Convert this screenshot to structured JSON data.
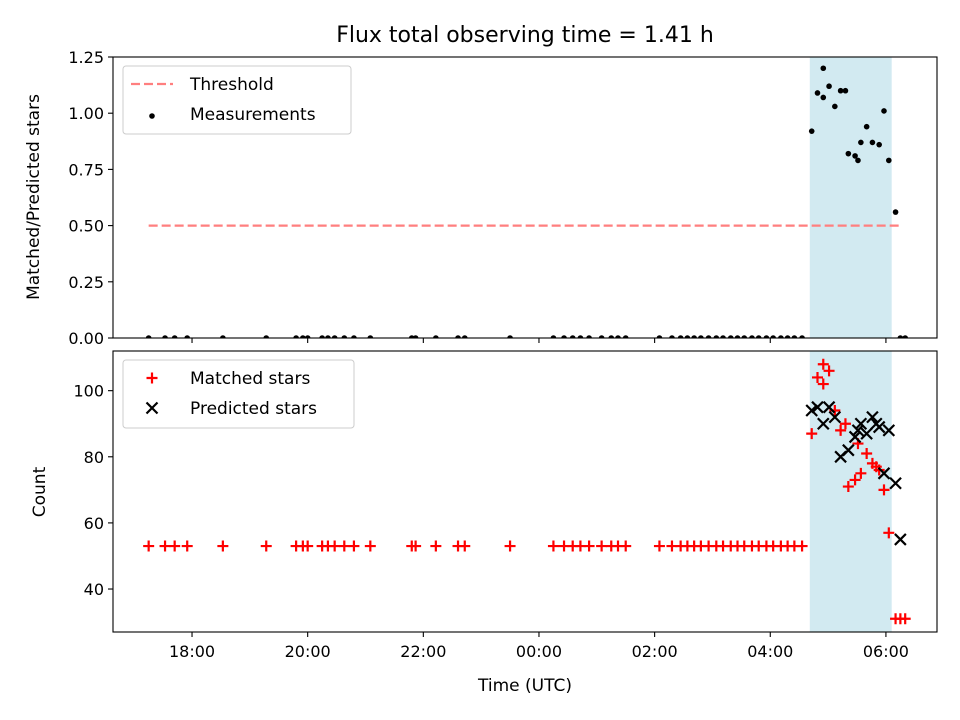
{
  "chart_data": [
    {
      "type": "scatter",
      "title": "Flux total observing time = 1.41 h",
      "xlabel": "",
      "ylabel": "Matched/Predicted stars",
      "xlim": [
        "16:38",
        "06:53"
      ],
      "ylim": [
        0,
        1.25
      ],
      "yticks": [
        "0.00",
        "0.25",
        "0.50",
        "0.75",
        "1.00",
        "1.25"
      ],
      "xticks": [
        "18:00",
        "20:00",
        "22:00",
        "00:00",
        "02:00",
        "04:00",
        "06:00"
      ],
      "highlight_span": [
        "04:41",
        "06:06"
      ],
      "highlight_color": "#add8e6",
      "legend_position": "upper-left",
      "series": [
        {
          "name": "Threshold",
          "kind": "line",
          "style": "dashed",
          "color": "#ff7f7f",
          "x": [
            "17:15",
            "06:15"
          ],
          "y": [
            0.5,
            0.5
          ]
        },
        {
          "name": "Measurements",
          "kind": "points",
          "marker": "dot",
          "color": "#000000",
          "x": [
            "17:15",
            "17:32",
            "17:42",
            "17:55",
            "18:32",
            "19:17",
            "19:48",
            "19:55",
            "20:00",
            "20:15",
            "20:21",
            "20:28",
            "20:38",
            "20:48",
            "21:05",
            "21:48",
            "21:52",
            "22:13",
            "22:36",
            "22:43",
            "23:30",
            "00:15",
            "00:26",
            "00:35",
            "00:43",
            "00:52",
            "01:05",
            "01:15",
            "01:22",
            "01:30",
            "02:05",
            "02:18",
            "02:27",
            "02:34",
            "02:41",
            "02:48",
            "02:56",
            "03:04",
            "03:11",
            "03:19",
            "03:26",
            "03:33",
            "03:41",
            "03:48",
            "03:56",
            "04:03",
            "04:11",
            "04:18",
            "04:25",
            "04:33",
            "04:43",
            "04:49",
            "04:55",
            "05:01",
            "05:07",
            "05:13",
            "05:21",
            "05:28",
            "05:34",
            "05:40",
            "05:46",
            "05:53",
            "05:58",
            "06:03",
            "06:10",
            "06:15",
            "06:20"
          ],
          "y": [
            0,
            0,
            0,
            0,
            0,
            0,
            0,
            0,
            0,
            0,
            0,
            0,
            0,
            0,
            0,
            0,
            0,
            0,
            0,
            0,
            0,
            0,
            0,
            0,
            0,
            0,
            0,
            0,
            0,
            0,
            0,
            0,
            0,
            0,
            0,
            0,
            0,
            0,
            0,
            0,
            0,
            0,
            0,
            0,
            0,
            0,
            0,
            0,
            0,
            0,
            0.92,
            1.09,
            1.07,
            1.12,
            1.03,
            1.1,
            0.82,
            0.81,
            0.87,
            0.94,
            0.87,
            0.86,
            1.01,
            0.79,
            0.56,
            0,
            0
          ]
        },
        {
          "name": "",
          "kind": "points",
          "marker": "dot",
          "color": "#000000",
          "x": [
            "04:55",
            "05:18",
            "05:31"
          ],
          "y": [
            1.2,
            1.1,
            0.79
          ]
        }
      ]
    },
    {
      "type": "scatter",
      "title": "",
      "xlabel": "Time (UTC)",
      "ylabel": "Count",
      "xlim": [
        "16:38",
        "06:53"
      ],
      "ylim": [
        27,
        112
      ],
      "yticks": [
        "40",
        "60",
        "80",
        "100"
      ],
      "xticks": [
        "18:00",
        "20:00",
        "22:00",
        "00:00",
        "02:00",
        "04:00",
        "06:00"
      ],
      "highlight_span": [
        "04:41",
        "06:06"
      ],
      "highlight_color": "#add8e6",
      "legend_position": "upper-left",
      "series": [
        {
          "name": "Matched stars",
          "kind": "points",
          "marker": "plus",
          "color": "#ff0000",
          "x": [
            "17:15",
            "17:32",
            "17:42",
            "17:55",
            "18:32",
            "19:17",
            "19:48",
            "19:55",
            "20:00",
            "20:15",
            "20:21",
            "20:28",
            "20:38",
            "20:48",
            "21:05",
            "21:48",
            "21:52",
            "22:13",
            "22:36",
            "22:43",
            "23:30",
            "00:15",
            "00:26",
            "00:35",
            "00:43",
            "00:52",
            "01:05",
            "01:15",
            "01:22",
            "01:30",
            "02:05",
            "02:18",
            "02:27",
            "02:34",
            "02:41",
            "02:48",
            "02:56",
            "03:04",
            "03:11",
            "03:19",
            "03:26",
            "03:33",
            "03:41",
            "03:48",
            "03:56",
            "04:03",
            "04:11",
            "04:18",
            "04:25",
            "04:33",
            "04:43",
            "04:49",
            "04:55",
            "05:01",
            "05:07",
            "05:13",
            "05:21",
            "05:28",
            "05:34",
            "05:40",
            "05:46",
            "05:53",
            "05:58",
            "06:03",
            "06:10",
            "06:15",
            "06:20"
          ],
          "y": [
            53,
            53,
            53,
            53,
            53,
            53,
            53,
            53,
            53,
            53,
            53,
            53,
            53,
            53,
            53,
            53,
            53,
            53,
            53,
            53,
            53,
            53,
            53,
            53,
            53,
            53,
            53,
            53,
            53,
            53,
            53,
            53,
            53,
            53,
            53,
            53,
            53,
            53,
            53,
            53,
            53,
            53,
            53,
            53,
            53,
            53,
            53,
            53,
            53,
            53,
            87,
            104,
            102,
            106,
            94,
            88,
            71,
            73,
            75,
            81,
            78,
            76,
            70,
            57,
            31,
            31,
            31
          ]
        },
        {
          "name": "",
          "kind": "points",
          "marker": "plus",
          "color": "#ff0000",
          "x": [
            "04:55",
            "05:18",
            "05:31",
            "05:50"
          ],
          "y": [
            108,
            90,
            84,
            77
          ]
        },
        {
          "name": "Predicted stars",
          "kind": "points",
          "marker": "x",
          "color": "#000000",
          "x": [
            "04:43",
            "04:49",
            "04:55",
            "05:01",
            "05:07",
            "05:13",
            "05:21",
            "05:28",
            "05:34",
            "05:40",
            "05:46",
            "05:53",
            "05:58",
            "06:03",
            "06:10"
          ],
          "y": [
            94,
            95,
            90,
            95,
            92,
            80,
            82,
            86,
            90,
            87,
            92,
            89,
            75,
            88,
            72
          ]
        },
        {
          "name": "",
          "kind": "points",
          "marker": "x",
          "color": "#000000",
          "x": [
            "05:31",
            "05:50",
            "06:15"
          ],
          "y": [
            88,
            90,
            55
          ]
        }
      ]
    }
  ]
}
